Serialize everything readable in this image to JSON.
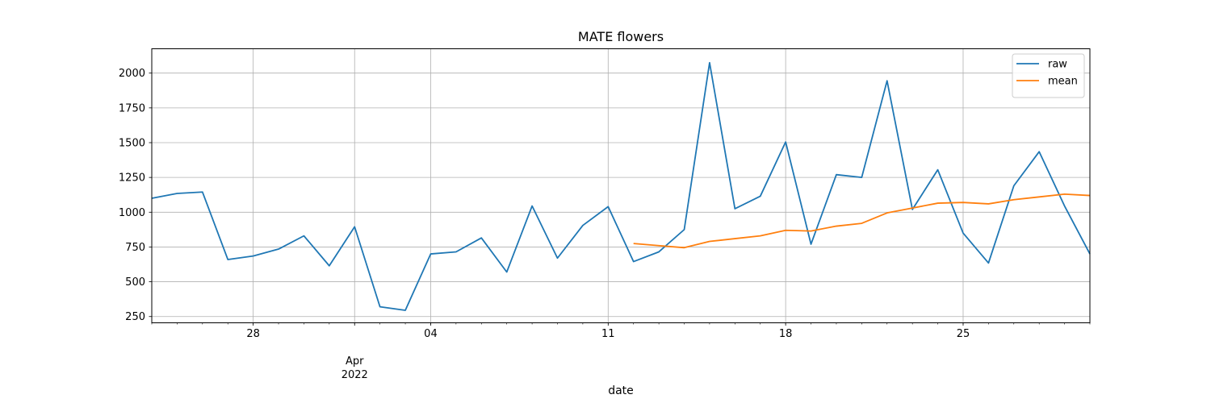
{
  "chart_data": {
    "type": "line",
    "title": "MATE flowers",
    "xlabel": "date",
    "ylabel": "",
    "x": [
      "2022-03-24",
      "2022-03-25",
      "2022-03-26",
      "2022-03-27",
      "2022-03-28",
      "2022-03-29",
      "2022-03-30",
      "2022-03-31",
      "2022-04-01",
      "2022-04-02",
      "2022-04-03",
      "2022-04-04",
      "2022-04-05",
      "2022-04-06",
      "2022-04-07",
      "2022-04-08",
      "2022-04-09",
      "2022-04-10",
      "2022-04-11",
      "2022-04-12",
      "2022-04-13",
      "2022-04-14",
      "2022-04-15",
      "2022-04-16",
      "2022-04-17",
      "2022-04-18",
      "2022-04-19",
      "2022-04-20",
      "2022-04-21",
      "2022-04-22",
      "2022-04-23",
      "2022-04-24",
      "2022-04-25",
      "2022-04-26",
      "2022-04-27",
      "2022-04-28",
      "2022-04-29",
      "2022-04-30"
    ],
    "xlim": [
      "2022-03-24",
      "2022-04-30"
    ],
    "ylim": [
      205,
      2175
    ],
    "grid": true,
    "legend_position": "top-right",
    "series": [
      {
        "name": "raw",
        "color": "#1f77b4",
        "values": [
          1100,
          1135,
          1145,
          660,
          685,
          735,
          830,
          615,
          895,
          320,
          295,
          700,
          715,
          815,
          570,
          1045,
          670,
          905,
          1040,
          645,
          715,
          875,
          2075,
          1025,
          1115,
          1505,
          770,
          1270,
          1250,
          1945,
          1020,
          1305,
          850,
          635,
          1190,
          1435,
          1045,
          700
        ]
      },
      {
        "name": "mean",
        "color": "#ff7f0e",
        "values": [
          null,
          null,
          null,
          null,
          null,
          null,
          null,
          null,
          null,
          null,
          null,
          null,
          null,
          null,
          null,
          null,
          null,
          null,
          null,
          775,
          760,
          745,
          790,
          810,
          830,
          870,
          865,
          900,
          920,
          995,
          1030,
          1065,
          1070,
          1060,
          1090,
          1110,
          1130,
          1120
        ]
      }
    ],
    "y_ticks": [
      {
        "value": 250,
        "label": "250"
      },
      {
        "value": 500,
        "label": "500"
      },
      {
        "value": 750,
        "label": "750"
      },
      {
        "value": 1000,
        "label": "1000"
      },
      {
        "value": 1250,
        "label": "1250"
      },
      {
        "value": 1500,
        "label": "1500"
      },
      {
        "value": 1750,
        "label": "1750"
      },
      {
        "value": 2000,
        "label": "2000"
      }
    ],
    "x_major_ticks": [
      {
        "date": "2022-03-28",
        "label": "28"
      },
      {
        "date": "2022-04-01",
        "label": "Apr",
        "sublabel": "2022"
      },
      {
        "date": "2022-04-04",
        "label": "04"
      },
      {
        "date": "2022-04-11",
        "label": "11"
      },
      {
        "date": "2022-04-18",
        "label": "18"
      },
      {
        "date": "2022-04-25",
        "label": "25"
      }
    ]
  }
}
